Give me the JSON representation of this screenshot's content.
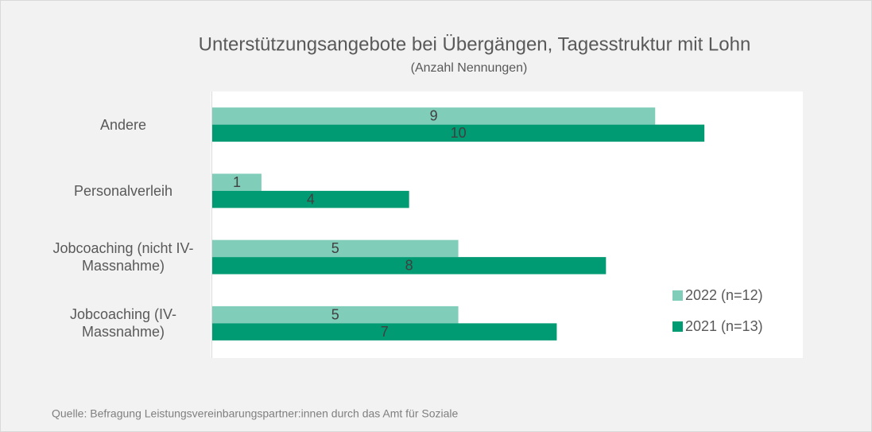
{
  "chart_data": {
    "type": "barh",
    "title": "Unterstützungsangebote bei Übergängen, Tagesstruktur mit Lohn",
    "subtitle": "(Anzahl Nennungen)",
    "categories": [
      "Andere",
      "Personalverleih",
      "Jobcoaching (nicht IV-Massnahme)",
      "Jobcoaching (IV-Massnahme)"
    ],
    "series": [
      {
        "name": "2022 (n=12)",
        "color": "#80cdb9",
        "values": [
          9,
          1,
          5,
          5
        ]
      },
      {
        "name": "2021 (n=13)",
        "color": "#009a73",
        "values": [
          10,
          4,
          8,
          7
        ]
      }
    ],
    "xlim": [
      0,
      12
    ],
    "grid": false,
    "legend": "right",
    "source": "Quelle: Befragung Leistungsvereinbarungspartner:innen durch das Amt für Soziale"
  }
}
